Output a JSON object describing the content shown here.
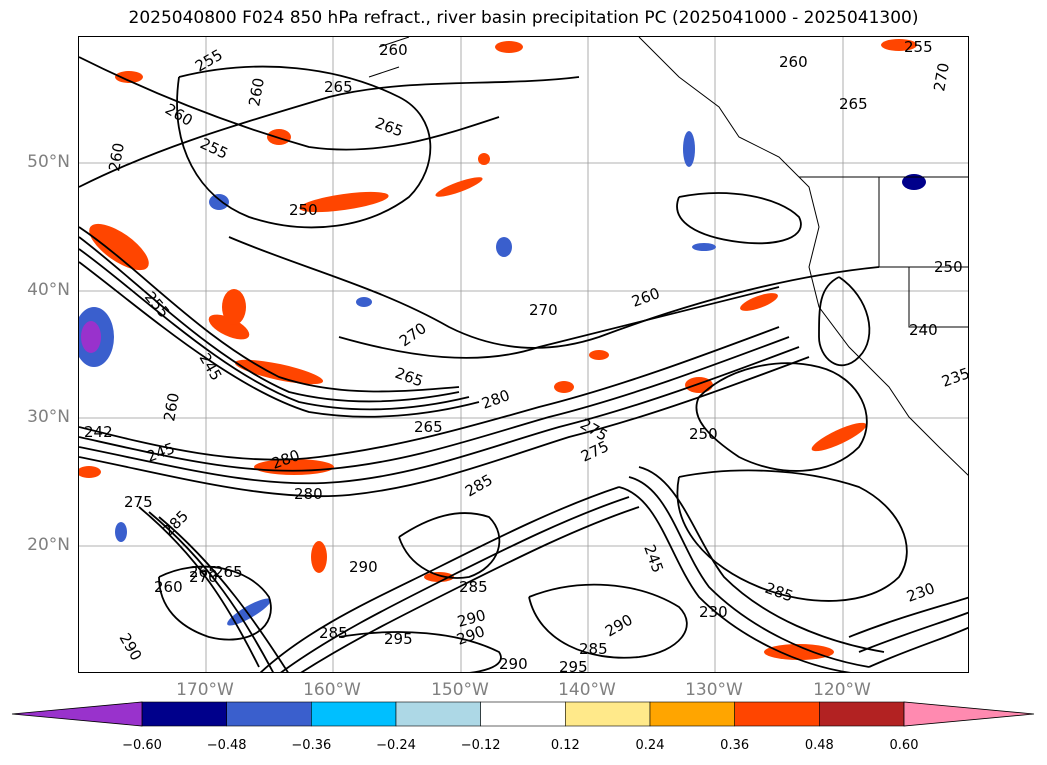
{
  "title": "2025040800 F024 850 hPa refract., river basin precipitation PC (2025041000 - 2025041300)",
  "lat_labels": [
    "50°N",
    "40°N",
    "30°N",
    "20°N"
  ],
  "lon_labels": [
    "170°W",
    "160°W",
    "150°W",
    "140°W",
    "130°W",
    "120°W"
  ],
  "contour_labels": [
    "260",
    "255",
    "260",
    "265",
    "265",
    "260",
    "255",
    "260",
    "250",
    "255",
    "270",
    "260",
    "255",
    "265",
    "270",
    "260",
    "275",
    "245",
    "250",
    "265",
    "280",
    "265",
    "275",
    "270",
    "250",
    "242",
    "260",
    "245",
    "275",
    "285",
    "280",
    "280",
    "285",
    "290",
    "285",
    "265",
    "290",
    "285",
    "230",
    "235",
    "240",
    "245",
    "230",
    "285",
    "290",
    "290",
    "295",
    "285",
    "290",
    "295",
    "270",
    "265",
    "260",
    "290"
  ],
  "colorbar": {
    "ticks": [
      "−0.60",
      "−0.48",
      "−0.36",
      "−0.24",
      "−0.12",
      "0.12",
      "0.24",
      "0.36",
      "0.48",
      "0.60"
    ],
    "colors": [
      "#9932cc",
      "#00008b",
      "#3a5fcd",
      "#00bfff",
      "#add8e6",
      "#ffffff",
      "#ffe98a",
      "#ffa500",
      "#ff4500",
      "#b22222",
      "#ff8ab0"
    ]
  }
}
